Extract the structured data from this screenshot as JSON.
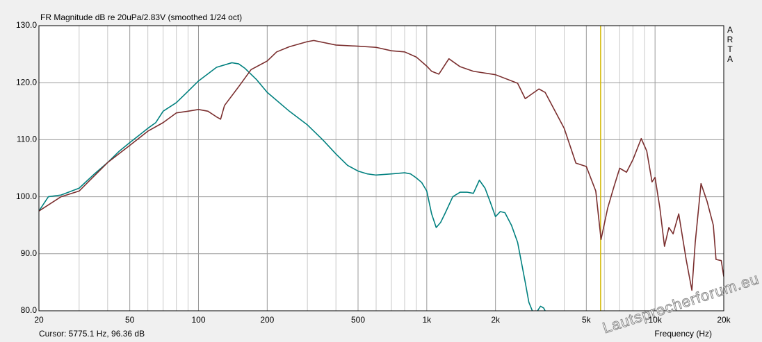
{
  "chart_data": {
    "type": "line",
    "title": "FR Magnitude dB re 20uPa/2.83V (smoothed 1/24 oct)",
    "brand": "ARTA",
    "cursor_text": "Cursor: 5775.1 Hz, 96.36 dB",
    "cursor_x": 5775.1,
    "cursor_color": "#d4b800",
    "x_label": "Frequency (Hz)",
    "watermark": "Lautsprecherforum.eu",
    "x_log": true,
    "xlim": [
      20,
      20000
    ],
    "ylim": [
      80,
      130
    ],
    "xticks": [
      20,
      50,
      100,
      200,
      500,
      {
        "value": 1000,
        "label": "1k"
      },
      {
        "value": 2000,
        "label": "2k"
      },
      {
        "value": 5000,
        "label": "5k"
      },
      {
        "value": 10000,
        "label": "10k"
      },
      {
        "value": 20000,
        "label": "20k"
      }
    ],
    "xticks_minor": [
      30,
      40,
      60,
      70,
      80,
      90,
      300,
      400,
      600,
      700,
      800,
      900,
      3000,
      4000,
      6000,
      7000,
      8000,
      9000
    ],
    "yticks": [
      {
        "value": 80,
        "label": "80.0"
      },
      {
        "value": 90,
        "label": "90.0"
      },
      {
        "value": 100,
        "label": "100.0"
      },
      {
        "value": 110,
        "label": "110.0"
      },
      {
        "value": 120,
        "label": "120.0"
      },
      {
        "value": 130,
        "label": "130.0"
      }
    ],
    "grid": true,
    "series": [
      {
        "color": "#00807f",
        "x": [
          20,
          22,
          25,
          30,
          35,
          40,
          45,
          50,
          55,
          60,
          65,
          70,
          80,
          90,
          100,
          120,
          140,
          150,
          160,
          180,
          200,
          250,
          300,
          350,
          400,
          450,
          500,
          550,
          600,
          700,
          800,
          850,
          900,
          950,
          1000,
          1050,
          1100,
          1150,
          1200,
          1300,
          1400,
          1500,
          1600,
          1700,
          1800,
          1900,
          2000,
          2100,
          2200,
          2350,
          2500,
          2700,
          2800,
          2900,
          3000,
          3150,
          3250,
          3350
        ],
        "values": [
          97.5,
          100,
          100.3,
          101.5,
          104,
          106,
          108,
          109.5,
          110.8,
          112,
          113,
          115,
          116.5,
          118.5,
          120.3,
          122.7,
          123.5,
          123.3,
          122.5,
          120.5,
          118.3,
          115,
          112.6,
          110,
          107.5,
          105.5,
          104.5,
          104,
          103.8,
          104,
          104.2,
          104,
          103.3,
          102.5,
          101,
          97,
          94.6,
          95.5,
          97,
          100,
          100.8,
          100.8,
          100.6,
          102.9,
          101.5,
          99,
          96.5,
          97.4,
          97.2,
          95,
          92,
          85,
          81.5,
          80,
          79.5,
          80.8,
          80.5,
          79.5
        ]
      },
      {
        "color": "#7a2e2e",
        "x": [
          20,
          25,
          30,
          40,
          50,
          60,
          70,
          80,
          90,
          100,
          110,
          120,
          125,
          130,
          150,
          170,
          200,
          220,
          250,
          300,
          320,
          400,
          500,
          600,
          700,
          800,
          900,
          1000,
          1050,
          1130,
          1250,
          1400,
          1600,
          2000,
          2500,
          2700,
          3100,
          3300,
          4000,
          4500,
          5000,
          5500,
          5800,
          6200,
          6600,
          7000,
          7500,
          8000,
          8700,
          9200,
          9700,
          10000,
          10500,
          11000,
          11500,
          12000,
          12700,
          13700,
          14500,
          15000,
          15900,
          16900,
          18000,
          18500,
          19500,
          20000
        ],
        "values": [
          97.5,
          100,
          101,
          106,
          109,
          111.5,
          113,
          114.7,
          115,
          115.3,
          115,
          114,
          113.6,
          116,
          119.3,
          122.3,
          123.8,
          125.4,
          126.3,
          127.2,
          127.4,
          126.6,
          126.4,
          126.2,
          125.6,
          125.4,
          124.5,
          122.9,
          122,
          121.5,
          124.2,
          122.8,
          122,
          121.4,
          119.9,
          117.2,
          118.9,
          118.3,
          112,
          105.9,
          105.3,
          101,
          92.5,
          98,
          101.7,
          105,
          104.3,
          106.5,
          110.2,
          108,
          102.6,
          103.4,
          98,
          91.3,
          94.6,
          93.5,
          97,
          88.9,
          83.6,
          92,
          102.3,
          99.2,
          95,
          89,
          88.8,
          86
        ]
      }
    ]
  }
}
